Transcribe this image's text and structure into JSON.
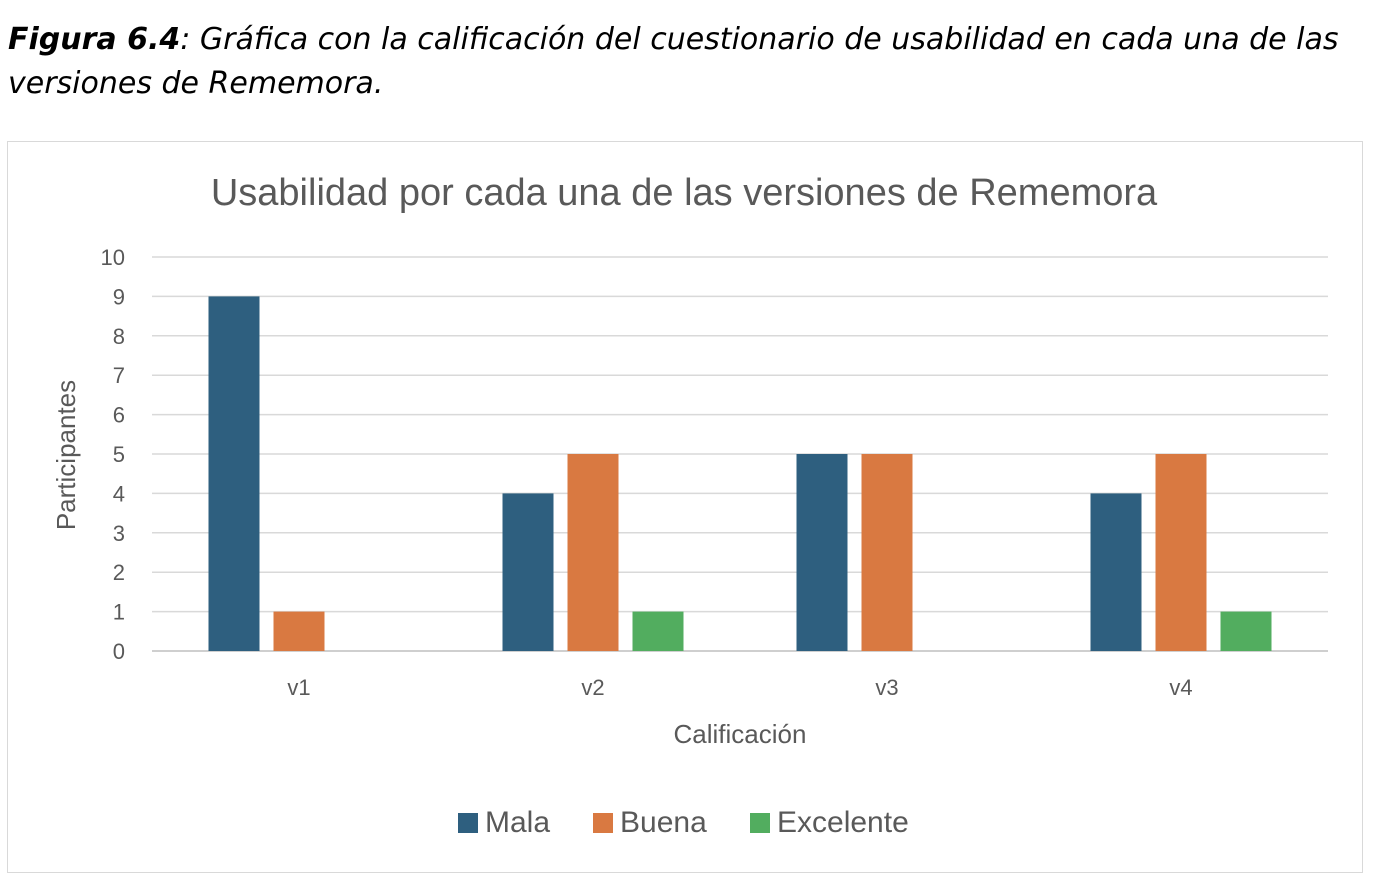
{
  "caption": {
    "label": "Figura 6.4",
    "text": ": Gráfica con la calificación del cuestionario de usabilidad en cada una de las versiones de Rememora."
  },
  "chart_data": {
    "type": "bar",
    "title": "Usabilidad por cada una de las versiones de Rememora",
    "xlabel": "Calificación",
    "ylabel": "Participantes",
    "categories": [
      "v1",
      "v2",
      "v3",
      "v4"
    ],
    "ylim": [
      0,
      10
    ],
    "yticks": [
      0,
      1,
      2,
      3,
      4,
      5,
      6,
      7,
      8,
      9,
      10
    ],
    "grid": true,
    "legend_position": "bottom",
    "series": [
      {
        "name": "Mala",
        "color": "#2e5f7f",
        "values": [
          9,
          4,
          5,
          4
        ]
      },
      {
        "name": "Buena",
        "color": "#d97941",
        "values": [
          1,
          5,
          5,
          5
        ]
      },
      {
        "name": "Excelente",
        "color": "#52ad5f",
        "values": [
          0,
          1,
          0,
          1
        ]
      }
    ]
  }
}
